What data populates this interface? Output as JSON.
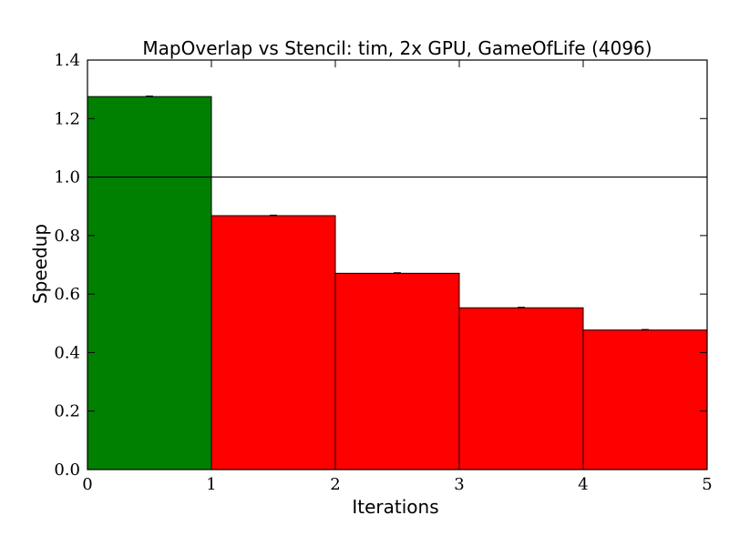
{
  "chart_data": {
    "type": "bar",
    "title": "MapOverlap vs Stencil: tim, 2x GPU, GameOfLife (4096)",
    "xlabel": "Iterations",
    "ylabel": "Speedup",
    "xlim": [
      0,
      5
    ],
    "ylim": [
      0,
      1.4
    ],
    "xticks": [
      "0",
      "1",
      "2",
      "3",
      "4",
      "5"
    ],
    "yticks": [
      "0.0",
      "0.2",
      "0.4",
      "0.6",
      "0.8",
      "1.0",
      "1.2",
      "1.4"
    ],
    "reference_line": 1.0,
    "grid": false,
    "bars": [
      {
        "x_start": 0,
        "x_end": 1,
        "value": 1.275,
        "color": "#008000"
      },
      {
        "x_start": 1,
        "x_end": 2,
        "value": 0.868,
        "color": "#ff0000"
      },
      {
        "x_start": 2,
        "x_end": 3,
        "value": 0.671,
        "color": "#ff0000"
      },
      {
        "x_start": 3,
        "x_end": 4,
        "value": 0.553,
        "color": "#ff0000"
      },
      {
        "x_start": 4,
        "x_end": 5,
        "value": 0.477,
        "color": "#ff0000"
      }
    ]
  }
}
